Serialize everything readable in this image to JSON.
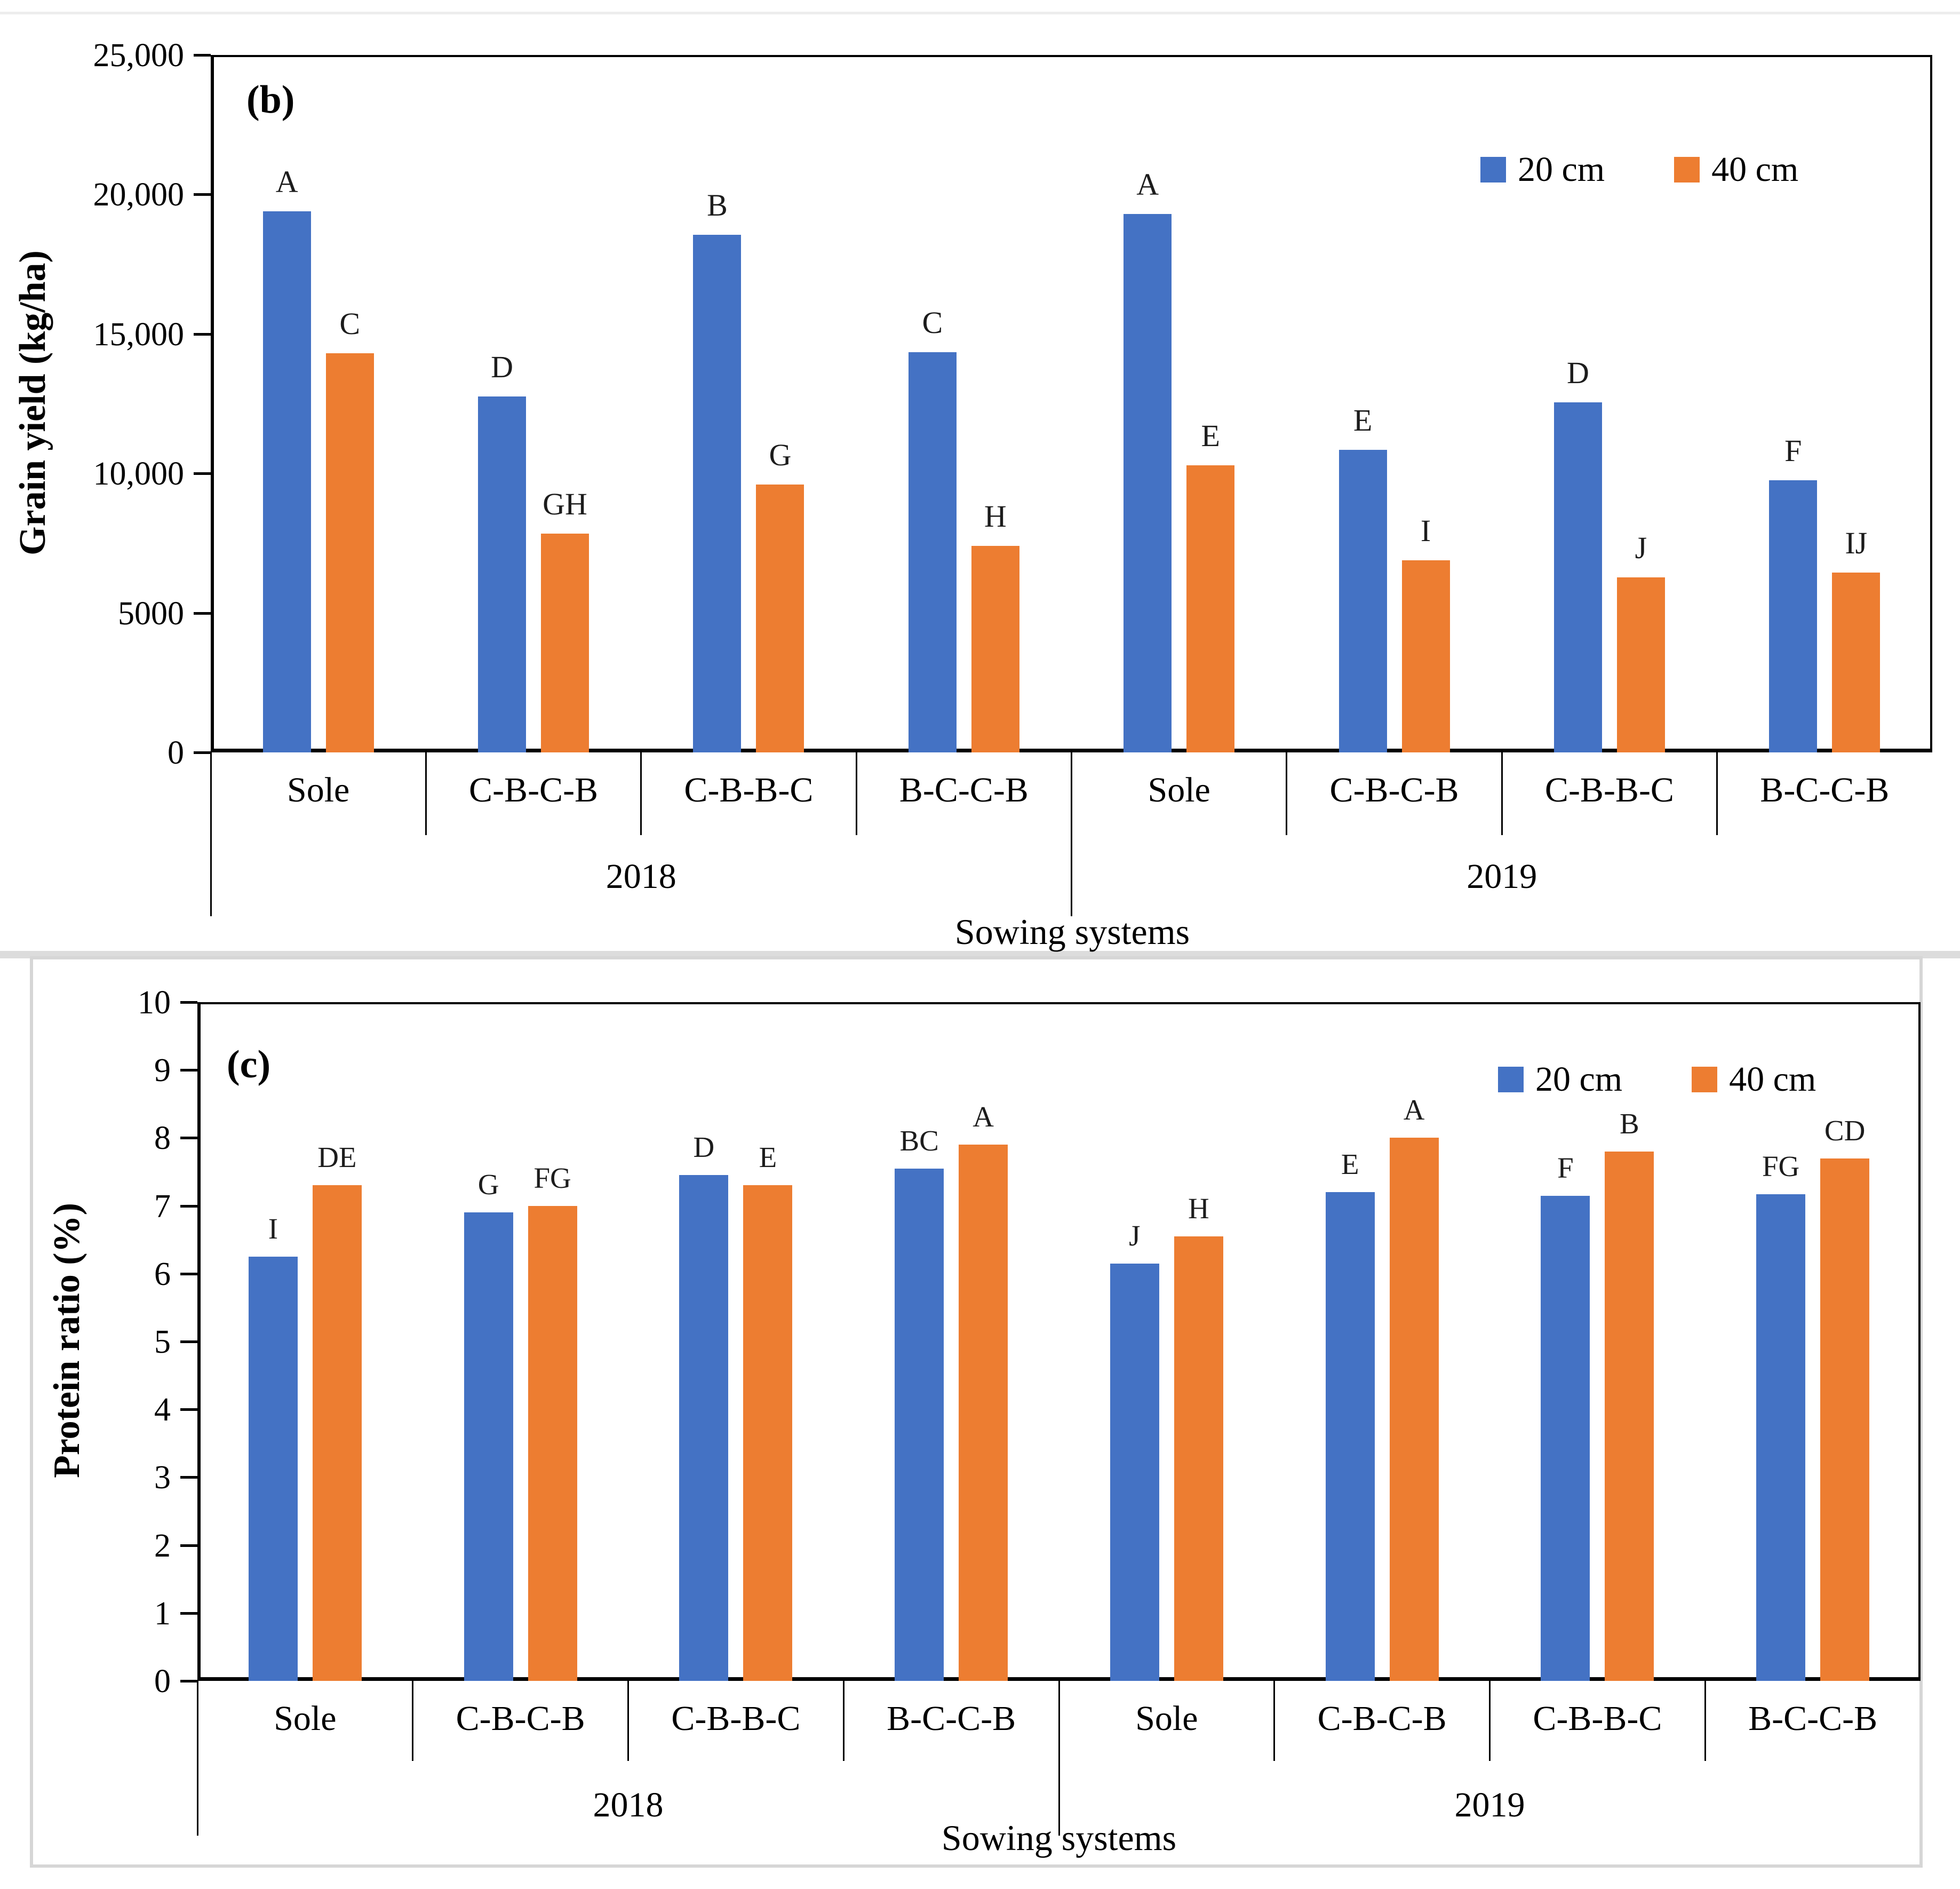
{
  "colors": {
    "series_20cm": "#4472C4",
    "series_40cm": "#ED7D31",
    "axis": "#000000",
    "panel_frame": "#d6d6d6"
  },
  "chart_data": [
    {
      "type": "bar",
      "panel_tag": "(b)",
      "ylabel": "Grain yield (kg/ha)",
      "xlabel": "Sowing systems",
      "ylim": [
        0,
        25000
      ],
      "grid": false,
      "legend_position": "top-right",
      "series": [
        {
          "name": "20 cm",
          "color": "#4472C4"
        },
        {
          "name": "40 cm",
          "color": "#ED7D31"
        }
      ],
      "yticks": [
        {
          "value": 0,
          "label": "0"
        },
        {
          "value": 5000,
          "label": "5000"
        },
        {
          "value": 10000,
          "label": "10,000"
        },
        {
          "value": 15000,
          "label": "15,000"
        },
        {
          "value": 20000,
          "label": "20,000"
        },
        {
          "value": 25000,
          "label": "25,000"
        }
      ],
      "groups": [
        {
          "year": "2018",
          "items": [
            {
              "category": "Sole",
              "values": [
                19400,
                14300
              ],
              "letters": [
                "A",
                "C"
              ]
            },
            {
              "category": "C-B-C-B",
              "values": [
                12750,
                7850
              ],
              "letters": [
                "D",
                "GH"
              ]
            },
            {
              "category": "C-B-B-C",
              "values": [
                18550,
                9600
              ],
              "letters": [
                "B",
                "G"
              ]
            },
            {
              "category": "B-C-C-B",
              "values": [
                14350,
                7400
              ],
              "letters": [
                "C",
                "H"
              ]
            }
          ]
        },
        {
          "year": "2019",
          "items": [
            {
              "category": "Sole",
              "values": [
                19300,
                10300
              ],
              "letters": [
                "A",
                "E"
              ]
            },
            {
              "category": "C-B-C-B",
              "values": [
                10850,
                6880
              ],
              "letters": [
                "E",
                "I"
              ]
            },
            {
              "category": "C-B-B-C",
              "values": [
                12550,
                6270
              ],
              "letters": [
                "D",
                "J"
              ]
            },
            {
              "category": "B-C-C-B",
              "values": [
                9750,
                6450
              ],
              "letters": [
                "F",
                "IJ"
              ]
            }
          ]
        }
      ]
    },
    {
      "type": "bar",
      "panel_tag": "(c)",
      "ylabel": "Protein ratio (%)",
      "xlabel": "Sowing systems",
      "ylim": [
        0,
        10
      ],
      "grid": false,
      "legend_position": "top-right",
      "series": [
        {
          "name": "20 cm",
          "color": "#4472C4"
        },
        {
          "name": "40 cm",
          "color": "#ED7D31"
        }
      ],
      "yticks": [
        {
          "value": 0,
          "label": "0"
        },
        {
          "value": 1,
          "label": "1"
        },
        {
          "value": 2,
          "label": "2"
        },
        {
          "value": 3,
          "label": "3"
        },
        {
          "value": 4,
          "label": "4"
        },
        {
          "value": 5,
          "label": "5"
        },
        {
          "value": 6,
          "label": "6"
        },
        {
          "value": 7,
          "label": "7"
        },
        {
          "value": 8,
          "label": "8"
        },
        {
          "value": 9,
          "label": "9"
        },
        {
          "value": 10,
          "label": "10"
        }
      ],
      "groups": [
        {
          "year": "2018",
          "items": [
            {
              "category": "Sole",
              "values": [
                6.25,
                7.3
              ],
              "letters": [
                "I",
                "DE"
              ]
            },
            {
              "category": "C-B-C-B",
              "values": [
                6.9,
                7.0
              ],
              "letters": [
                "G",
                "FG"
              ]
            },
            {
              "category": "C-B-B-C",
              "values": [
                7.45,
                7.3
              ],
              "letters": [
                "D",
                "E"
              ]
            },
            {
              "category": "B-C-C-B",
              "values": [
                7.55,
                7.9
              ],
              "letters": [
                "BC",
                "A"
              ]
            }
          ]
        },
        {
          "year": "2019",
          "items": [
            {
              "category": "Sole",
              "values": [
                6.15,
                6.55
              ],
              "letters": [
                "J",
                "H"
              ]
            },
            {
              "category": "C-B-C-B",
              "values": [
                7.2,
                8.0
              ],
              "letters": [
                "E",
                "A"
              ]
            },
            {
              "category": "C-B-B-C",
              "values": [
                7.15,
                7.8
              ],
              "letters": [
                "F",
                "B"
              ]
            },
            {
              "category": "B-C-C-B",
              "values": [
                7.17,
                7.7
              ],
              "letters": [
                "FG",
                "CD"
              ]
            }
          ]
        }
      ]
    }
  ]
}
